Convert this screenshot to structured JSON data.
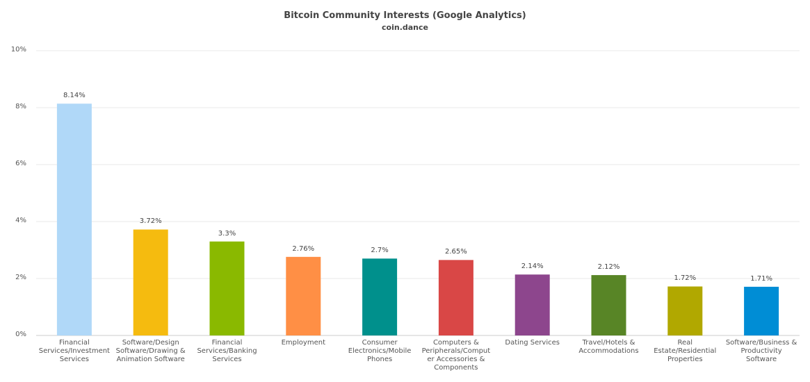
{
  "chart_data": {
    "type": "bar",
    "title": "Bitcoin Community Interests (Google Analytics)",
    "subtitle": "coin.dance",
    "xlabel": "",
    "ylabel": "",
    "ylim": [
      0,
      10
    ],
    "yticks": [
      "0%",
      "2%",
      "4%",
      "6%",
      "8%",
      "10%"
    ],
    "grid": true,
    "categories": [
      "Financial Services/Investment Services",
      "Software/Design Software/Drawing & Animation Software",
      "Financial Services/Banking Services",
      "Employment",
      "Consumer Electronics/Mobile Phones",
      "Computers & Peripherals/Computer Accessories & Components",
      "Dating Services",
      "Travel/Hotels & Accommodations",
      "Real Estate/Residential Properties",
      "Software/Business & Productivity Software"
    ],
    "values": [
      8.14,
      3.72,
      3.3,
      2.76,
      2.7,
      2.65,
      2.14,
      2.12,
      1.72,
      1.71
    ],
    "data_labels": [
      "8.14%",
      "3.72%",
      "3.3%",
      "2.76%",
      "2.7%",
      "2.65%",
      "2.14%",
      "2.12%",
      "1.72%",
      "1.71%"
    ],
    "colors": [
      "#b0d8f8",
      "#f5bb0f",
      "#8ab900",
      "#ff8f45",
      "#00908c",
      "#d94746",
      "#8d468d",
      "#588526",
      "#b1a800",
      "#008dd5"
    ]
  }
}
